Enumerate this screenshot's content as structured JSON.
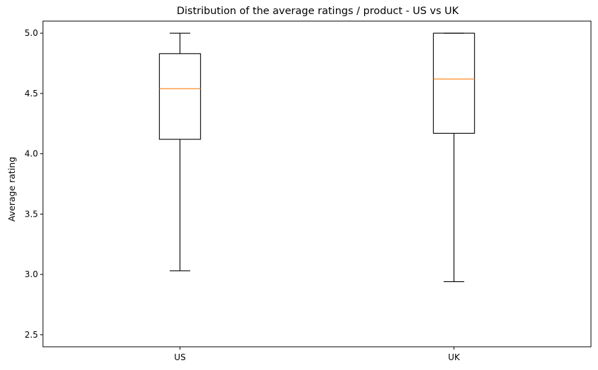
{
  "chart_data": {
    "type": "box",
    "title": "Distribution of the average ratings / product - US vs UK",
    "xlabel": "",
    "ylabel": "Average rating",
    "ylim": [
      2.4,
      5.1
    ],
    "yticks": [
      {
        "value": 2.5,
        "label": "2.5"
      },
      {
        "value": 3.0,
        "label": "3.0"
      },
      {
        "value": 3.5,
        "label": "3.5"
      },
      {
        "value": 4.0,
        "label": "4.0"
      },
      {
        "value": 4.5,
        "label": "4.5"
      },
      {
        "value": 5.0,
        "label": "5.0"
      }
    ],
    "categories": [
      "US",
      "UK"
    ],
    "boxes": [
      {
        "category": "US",
        "whisker_low": 3.03,
        "q1": 4.12,
        "median": 4.54,
        "q3": 4.83,
        "whisker_high": 5.0
      },
      {
        "category": "UK",
        "whisker_low": 2.94,
        "q1": 4.17,
        "median": 4.62,
        "q3": 5.0,
        "whisker_high": 5.0
      }
    ],
    "colors": {
      "box": "#000000",
      "median": "#ff7f0e",
      "frame": "#000000"
    },
    "grid": false
  }
}
